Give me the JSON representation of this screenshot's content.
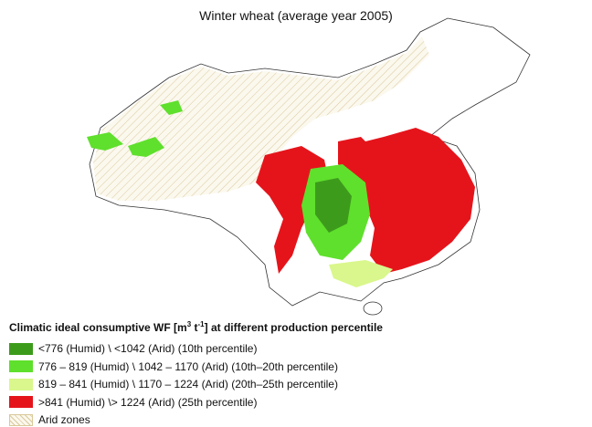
{
  "title": "Winter wheat (average year 2005)",
  "legend": {
    "title_parts": [
      "Climatic ideal consumptive WF [m",
      "3",
      "  t",
      "-1",
      "] at different production percentile"
    ],
    "entries": [
      {
        "label": "<776 (Humid) \\ <1042 (Arid) (10th percentile)",
        "color": "#3d9b1c"
      },
      {
        "label": "776 – 819 (Humid) \\ 1042 – 1170 (Arid) (10th–20th percentile)",
        "color": "#5fe02c"
      },
      {
        "label": "819 – 841 (Humid) \\ 1170 – 1224 (Arid) (20th–25th percentile)",
        "color": "#d9f78c"
      },
      {
        "label": ">841 (Humid) \\> 1224 (Arid) (25th percentile)",
        "color": "#e5141b"
      },
      {
        "label": "Arid zones",
        "color": "hatch"
      }
    ]
  }
}
